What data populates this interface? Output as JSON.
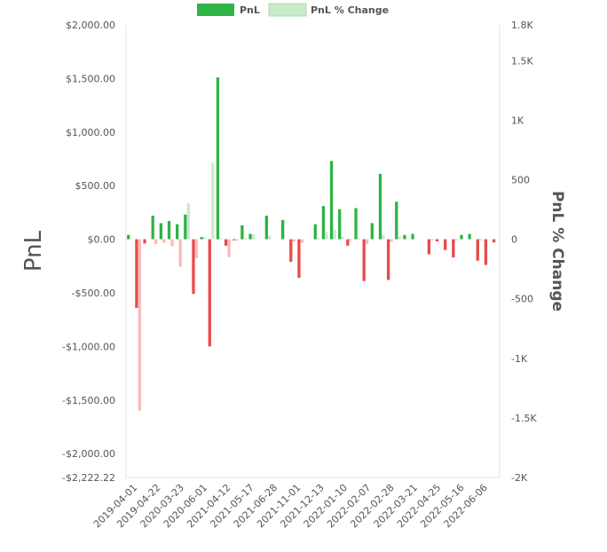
{
  "chart_data": {
    "type": "bar",
    "legend": {
      "placement": "top-center",
      "items": [
        {
          "label": "PnL",
          "color": "#2fb344"
        },
        {
          "label": "PnL % Change",
          "color": "#c8ebcc"
        }
      ]
    },
    "y_left": {
      "label": "PnL",
      "range": [
        -2222.22,
        2000
      ],
      "ticks": [
        {
          "value": 2000,
          "label": "$2,000.00"
        },
        {
          "value": 1500,
          "label": "$1,500.00"
        },
        {
          "value": 1000,
          "label": "$1,000.00"
        },
        {
          "value": 500,
          "label": "$500.00"
        },
        {
          "value": 0,
          "label": "$0.00"
        },
        {
          "value": -500,
          "label": "-$500.00"
        },
        {
          "value": -1000,
          "label": "-$1,000.00"
        },
        {
          "value": -1500,
          "label": "-$1,500.00"
        },
        {
          "value": -2000,
          "label": "-$2,000.00"
        },
        {
          "value": -2222.22,
          "label": "-$2,222.22"
        }
      ]
    },
    "y_right": {
      "label": "PnL % Change",
      "range": [
        -2000,
        1800
      ],
      "ticks": [
        {
          "value": 1800,
          "label": "1.8K"
        },
        {
          "value": 1500,
          "label": "1.5K"
        },
        {
          "value": 1000,
          "label": "1K"
        },
        {
          "value": 500,
          "label": "500"
        },
        {
          "value": 0,
          "label": "0"
        },
        {
          "value": -500,
          "label": "-500"
        },
        {
          "value": -1000,
          "label": "-1K"
        },
        {
          "value": -1500,
          "label": "-1.5K"
        },
        {
          "value": -2000,
          "label": "-2K"
        }
      ]
    },
    "x_tick_labels": [
      "2019-04-01",
      "2019-04-22",
      "2020-03-23",
      "2020-06-01",
      "2021-04-12",
      "2021-05-17",
      "2021-06-28",
      "2021-11-01",
      "2021-12-13",
      "2022-01-10",
      "2022-02-07",
      "2022-02-28",
      "2022-03-21",
      "2022-04-25",
      "2022-05-16",
      "2022-06-06"
    ],
    "colors": {
      "pnl_positive": "#2fb344",
      "pnl_negative": "#e84a4a",
      "pct_positive": "#c8ebcc",
      "pct_negative": "#f7bcbc"
    },
    "series": [
      {
        "name": "PnL",
        "axis": "left",
        "values": [
          40,
          -640,
          -40,
          220,
          150,
          170,
          140,
          230,
          -510,
          20,
          -1000,
          1510,
          -60,
          -10,
          130,
          50,
          0,
          220,
          0,
          180,
          -210,
          -360,
          0,
          140,
          310,
          730,
          280,
          -60,
          290,
          -390,
          150,
          610,
          -380,
          350,
          40,
          50,
          0,
          -140,
          -20,
          -100,
          -170,
          40,
          50,
          -200,
          -240,
          -30
        ],
        "notes": ""
      },
      {
        "name": "PnL % Change",
        "axis": "right",
        "values": [
          0,
          -1440,
          0,
          -40,
          -30,
          -60,
          -230,
          300,
          -160,
          20,
          640,
          10,
          -150,
          -10,
          10,
          40,
          0,
          30,
          0,
          0,
          -20,
          -30,
          0,
          10,
          60,
          80,
          20,
          -10,
          10,
          -40,
          0,
          40,
          -20,
          20,
          0,
          0,
          0,
          -10,
          0,
          0,
          -10,
          0,
          0,
          -10,
          0,
          0
        ]
      }
    ]
  }
}
